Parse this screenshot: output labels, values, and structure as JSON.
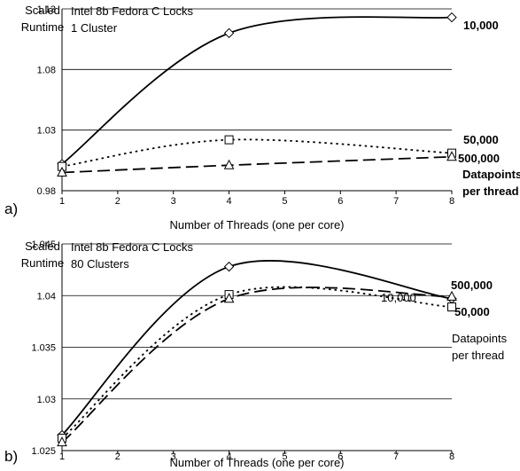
{
  "chart_data": [
    {
      "type": "line",
      "panel_label": "a)",
      "annotation": [
        "Intel 8b Fedora C Locks",
        "1 Cluster"
      ],
      "ylabel": [
        "Scaled",
        "Runtime"
      ],
      "xlabel": "Number of Threads (one per core)",
      "xlim": [
        1,
        8
      ],
      "ylim": [
        0.98,
        1.13
      ],
      "x_ticks": [
        "1",
        "2",
        "3",
        "4",
        "5",
        "6",
        "7",
        "8"
      ],
      "y_ticks": [
        "0.98",
        "1.03",
        "1.08",
        "1.13"
      ],
      "grid": true,
      "legend_note": [
        "Datapoints",
        "per thread"
      ],
      "series": [
        {
          "name": "10,000",
          "x": [
            1,
            4,
            8
          ],
          "y": [
            1.002,
            1.11,
            1.123
          ],
          "line": "solid",
          "marker": "diamond"
        },
        {
          "name": "50,000",
          "x": [
            1,
            4,
            8
          ],
          "y": [
            1.0,
            1.022,
            1.011
          ],
          "line": "dotted",
          "marker": "square"
        },
        {
          "name": "500,000",
          "x": [
            1,
            4,
            8
          ],
          "y": [
            0.995,
            1.001,
            1.008
          ],
          "line": "dashed",
          "marker": "triangle"
        }
      ]
    },
    {
      "type": "line",
      "panel_label": "b)",
      "annotation": [
        "Intel 8b Fedora C Locks",
        "80 Clusters"
      ],
      "ylabel": [
        "Scaled",
        "Runtime"
      ],
      "xlabel": "Number of Threads (one per core)",
      "xlim": [
        1,
        8
      ],
      "ylim": [
        1.025,
        1.045
      ],
      "x_ticks": [
        "1",
        "2",
        "3",
        "4",
        "5",
        "6",
        "7",
        "8"
      ],
      "y_ticks": [
        "1.025",
        "1.03",
        "1.035",
        "1.04",
        "1.045"
      ],
      "grid": true,
      "legend_note": [
        "Datapoints",
        "per thread"
      ],
      "series": [
        {
          "name": "10,000",
          "x": [
            1,
            4,
            8
          ],
          "y": [
            1.0265,
            1.0428,
            1.0397
          ],
          "line": "solid",
          "marker": "diamond"
        },
        {
          "name": "50,000",
          "x": [
            1,
            4,
            8
          ],
          "y": [
            1.0262,
            1.0401,
            1.0389
          ],
          "line": "dotted",
          "marker": "square"
        },
        {
          "name": "500,000",
          "x": [
            1,
            4,
            8
          ],
          "y": [
            1.0258,
            1.0397,
            1.0399
          ],
          "line": "dashed",
          "marker": "triangle"
        }
      ]
    }
  ]
}
